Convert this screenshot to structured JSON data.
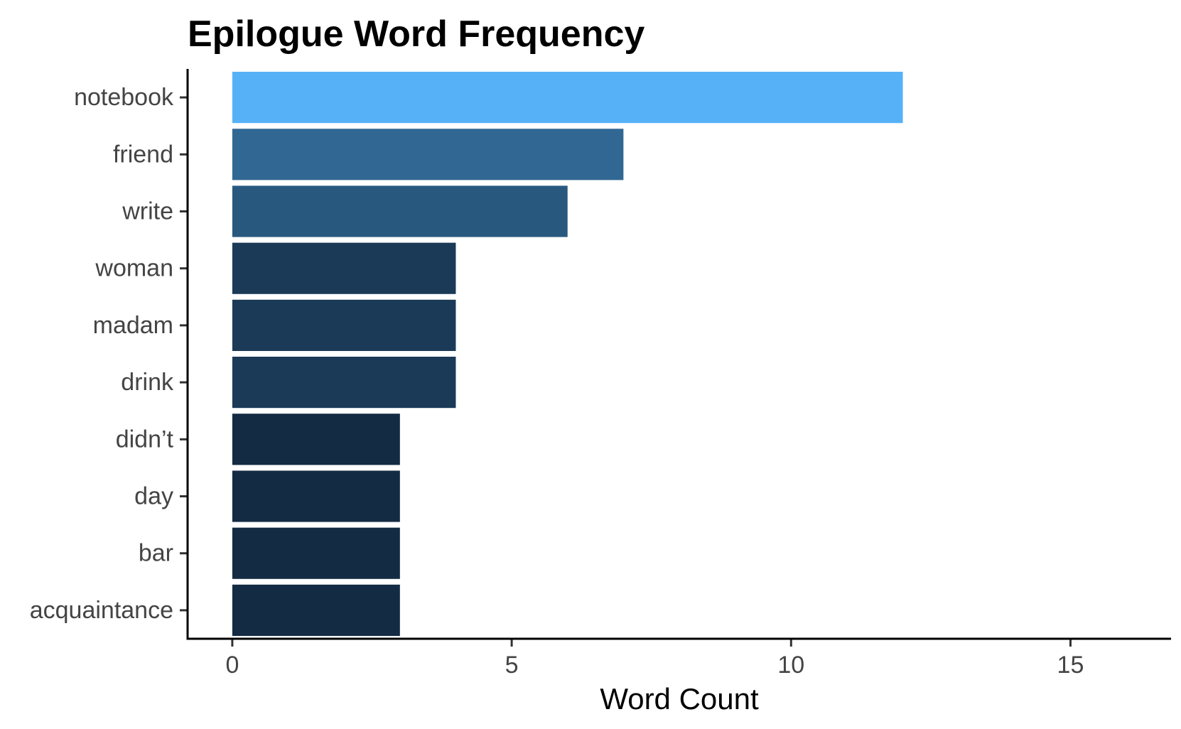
{
  "chart_data": {
    "type": "bar",
    "orientation": "horizontal",
    "title": "Epilogue Word Frequency",
    "xlabel": "Word Count",
    "ylabel": "",
    "xlim": [
      -0.8,
      16.8
    ],
    "xticks": [
      0,
      5,
      10,
      15
    ],
    "xtick_labels": [
      "0",
      "5",
      "10",
      "15"
    ],
    "grid": false,
    "legend": "none",
    "categories": [
      "notebook",
      "friend",
      "write",
      "woman",
      "madam",
      "drink",
      "didn’t",
      "day",
      "bar",
      "acquaintance"
    ],
    "values": [
      12,
      7,
      6,
      4,
      4,
      4,
      3,
      3,
      3,
      3
    ],
    "color_scale": {
      "low": "#132B43",
      "high": "#56B1F7"
    }
  }
}
